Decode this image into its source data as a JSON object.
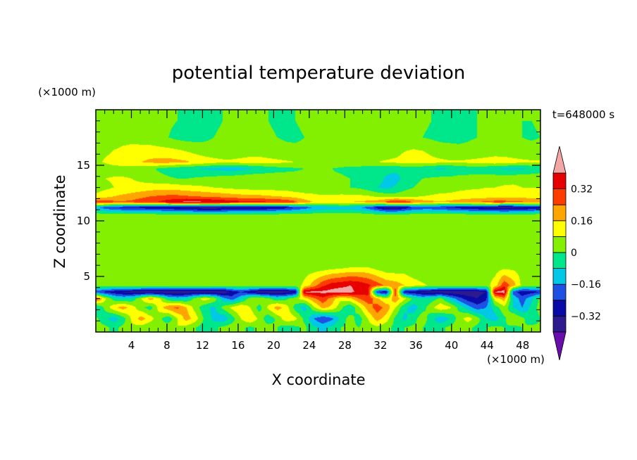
{
  "chart_data": {
    "type": "heatmap",
    "title": "potential temperature deviation",
    "time_label": "t=648000 s",
    "xlabel": "X coordinate",
    "ylabel": "Z coordinate",
    "x_unit": "(×1000 m)",
    "z_unit": "(×1000 m)",
    "xlim": [
      0,
      50
    ],
    "zlim": [
      0,
      20
    ],
    "x_ticks": [
      4,
      8,
      12,
      16,
      20,
      24,
      28,
      32,
      36,
      40,
      44,
      48
    ],
    "z_ticks": [
      5,
      10,
      15
    ],
    "colorbar": {
      "tick_labels": [
        "0.32",
        "0.16",
        "0",
        "−0.16",
        "−0.32"
      ],
      "tick_values": [
        0.32,
        0.16,
        0,
        -0.16,
        -0.32
      ],
      "levels": [
        -0.4,
        -0.32,
        -0.24,
        -0.16,
        -0.08,
        0,
        0.08,
        0.16,
        0.24,
        0.32,
        0.4
      ],
      "colors": [
        "#6a0dad",
        "#2e1a8f",
        "#0a0aa8",
        "#1e50e6",
        "#00c8e6",
        "#00e68a",
        "#82f000",
        "#ffff00",
        "#ffa500",
        "#ff3c00",
        "#e60000",
        "#f4a6a6"
      ],
      "extend": "both"
    },
    "field": {
      "rows": [
        {
          "z": 19.0,
          "v": [
            0.04,
            0.04,
            0.04,
            0.05,
            0.05,
            0.04,
            0.03,
            0.02,
            0.01,
            0.0,
            -0.01,
            -0.01,
            -0.01,
            -0.01,
            0.0,
            0.01,
            0.02,
            0.02,
            0.01,
            0.0,
            -0.01,
            -0.01,
            0.0,
            0.01,
            0.02,
            0.03,
            0.03,
            0.03,
            0.02,
            0.01,
            0.01,
            0.02,
            0.03,
            0.03,
            0.03,
            0.02,
            0.01,
            0.0,
            -0.01,
            -0.02,
            -0.02,
            -0.01,
            0.0,
            0.01,
            0.02,
            0.02,
            0.01,
            0.0,
            0.0,
            0.01
          ]
        },
        {
          "z": 17.5,
          "v": [
            0.03,
            0.04,
            0.05,
            0.06,
            0.06,
            0.05,
            0.04,
            0.02,
            0.0,
            -0.02,
            -0.03,
            -0.03,
            -0.02,
            0.0,
            0.01,
            0.02,
            0.03,
            0.03,
            0.02,
            0.01,
            0.0,
            -0.01,
            -0.01,
            0.0,
            0.01,
            0.02,
            0.03,
            0.03,
            0.02,
            0.01,
            0.0,
            0.0,
            0.01,
            0.02,
            0.02,
            0.01,
            0.0,
            -0.01,
            -0.02,
            -0.02,
            -0.02,
            -0.01,
            0.0,
            0.01,
            0.02,
            0.02,
            0.01,
            0.0,
            -0.01,
            0.0
          ]
        },
        {
          "z": 16.0,
          "v": [
            0.05,
            0.07,
            0.09,
            0.1,
            0.11,
            0.12,
            0.13,
            0.13,
            0.13,
            0.12,
            0.1,
            0.08,
            0.06,
            0.05,
            0.04,
            0.04,
            0.05,
            0.06,
            0.06,
            0.05,
            0.04,
            0.03,
            0.02,
            0.02,
            0.03,
            0.04,
            0.05,
            0.06,
            0.06,
            0.05,
            0.04,
            0.04,
            0.05,
            0.06,
            0.09,
            0.11,
            0.1,
            0.07,
            0.05,
            0.04,
            0.03,
            0.03,
            0.04,
            0.05,
            0.06,
            0.06,
            0.05,
            0.04,
            0.04,
            0.05
          ]
        },
        {
          "z": 15.3,
          "v": [
            0.06,
            0.09,
            0.12,
            0.14,
            0.15,
            0.16,
            0.18,
            0.19,
            0.19,
            0.18,
            0.17,
            0.15,
            0.13,
            0.11,
            0.1,
            0.1,
            0.11,
            0.12,
            0.12,
            0.11,
            0.1,
            0.09,
            0.08,
            0.07,
            0.06,
            0.05,
            0.04,
            0.04,
            0.05,
            0.06,
            0.07,
            0.08,
            0.09,
            0.1,
            0.11,
            0.12,
            0.12,
            0.11,
            0.1,
            0.09,
            0.09,
            0.1,
            0.11,
            0.12,
            0.13,
            0.12,
            0.11,
            0.1,
            0.09,
            0.09
          ]
        },
        {
          "z": 14.7,
          "v": [
            0.02,
            0.03,
            0.04,
            0.04,
            0.03,
            0.02,
            0.01,
            -0.01,
            -0.03,
            -0.05,
            -0.07,
            -0.08,
            -0.09,
            -0.1,
            -0.11,
            -0.12,
            -0.11,
            -0.09,
            -0.07,
            -0.05,
            -0.03,
            -0.02,
            -0.01,
            0.0,
            0.01,
            0.01,
            0.0,
            -0.01,
            -0.02,
            -0.03,
            -0.04,
            -0.05,
            -0.06,
            -0.06,
            -0.05,
            -0.05,
            -0.06,
            -0.08,
            -0.09,
            -0.08,
            -0.06,
            -0.05,
            -0.05,
            -0.06,
            -0.08,
            -0.09,
            -0.1,
            -0.09,
            -0.07,
            -0.05
          ]
        },
        {
          "z": 13.8,
          "v": [
            0.07,
            0.08,
            0.09,
            0.09,
            0.08,
            0.06,
            0.04,
            0.02,
            0.01,
            0.0,
            0.0,
            0.01,
            0.02,
            0.03,
            0.04,
            0.05,
            0.06,
            0.07,
            0.07,
            0.06,
            0.05,
            0.04,
            0.03,
            0.03,
            0.02,
            0.02,
            0.01,
            0.01,
            0.0,
            -0.01,
            -0.02,
            -0.05,
            -0.09,
            -0.11,
            -0.06,
            -0.02,
            0.0,
            0.01,
            0.02,
            0.02,
            0.03,
            0.03,
            0.04,
            0.04,
            0.05,
            0.05,
            0.06,
            0.06,
            0.06,
            0.06
          ]
        },
        {
          "z": 13.0,
          "v": [
            0.04,
            0.06,
            0.08,
            0.09,
            0.1,
            0.11,
            0.12,
            0.13,
            0.13,
            0.12,
            0.11,
            0.1,
            0.09,
            0.08,
            0.07,
            0.06,
            0.05,
            0.05,
            0.05,
            0.05,
            0.04,
            0.04,
            0.03,
            0.03,
            0.03,
            0.02,
            0.02,
            0.01,
            0.0,
            -0.01,
            -0.04,
            -0.08,
            -0.1,
            -0.07,
            -0.03,
            0.0,
            0.02,
            0.03,
            0.04,
            0.05,
            0.06,
            0.07,
            0.07,
            0.08,
            0.08,
            0.09,
            0.09,
            0.08,
            0.08,
            0.08
          ]
        },
        {
          "z": 12.2,
          "v": [
            0.1,
            0.13,
            0.16,
            0.18,
            0.2,
            0.22,
            0.24,
            0.25,
            0.26,
            0.26,
            0.25,
            0.24,
            0.23,
            0.22,
            0.21,
            0.2,
            0.19,
            0.18,
            0.18,
            0.17,
            0.16,
            0.15,
            0.13,
            0.11,
            0.1,
            0.09,
            0.09,
            0.1,
            0.1,
            0.1,
            0.09,
            0.07,
            0.05,
            0.04,
            0.05,
            0.07,
            0.08,
            0.09,
            0.1,
            0.1,
            0.11,
            0.11,
            0.12,
            0.12,
            0.13,
            0.13,
            0.14,
            0.13,
            0.12,
            0.11
          ]
        },
        {
          "z": 11.7,
          "v": [
            0.3,
            0.28,
            0.26,
            0.25,
            0.26,
            0.28,
            0.3,
            0.33,
            0.36,
            0.4,
            0.42,
            0.42,
            0.41,
            0.4,
            0.38,
            0.36,
            0.35,
            0.34,
            0.34,
            0.33,
            0.32,
            0.3,
            0.26,
            0.2,
            0.16,
            0.14,
            0.14,
            0.15,
            0.16,
            0.17,
            0.18,
            0.2,
            0.26,
            0.34,
            0.3,
            0.24,
            0.2,
            0.18,
            0.17,
            0.18,
            0.2,
            0.22,
            0.24,
            0.26,
            0.27,
            0.27,
            0.26,
            0.25,
            0.24,
            0.22
          ]
        },
        {
          "z": 11.2,
          "v": [
            -0.14,
            -0.2,
            -0.24,
            -0.26,
            -0.27,
            -0.28,
            -0.29,
            -0.3,
            -0.31,
            -0.33,
            -0.35,
            -0.37,
            -0.38,
            -0.38,
            -0.37,
            -0.36,
            -0.36,
            -0.35,
            -0.34,
            -0.32,
            -0.3,
            -0.28,
            -0.24,
            -0.2,
            -0.16,
            -0.14,
            -0.12,
            -0.12,
            -0.13,
            -0.15,
            -0.2,
            -0.28,
            -0.35,
            -0.36,
            -0.3,
            -0.24,
            -0.22,
            -0.22,
            -0.24,
            -0.26,
            -0.28,
            -0.3,
            -0.32,
            -0.34,
            -0.36,
            -0.37,
            -0.36,
            -0.34,
            -0.31,
            -0.28
          ]
        },
        {
          "z": 10.5,
          "v": [
            0.05,
            0.05,
            0.05,
            0.05,
            0.05,
            0.05,
            0.05,
            0.05,
            0.05,
            0.05,
            0.05,
            0.05,
            0.05,
            0.05,
            0.05,
            0.05,
            0.05,
            0.05,
            0.05,
            0.05,
            0.05,
            0.05,
            0.05,
            0.05,
            0.05,
            0.05,
            0.05,
            0.05,
            0.05,
            0.05,
            0.05,
            0.04,
            0.03,
            0.03,
            0.04,
            0.05,
            0.05,
            0.05,
            0.05,
            0.05,
            0.05,
            0.05,
            0.05,
            0.05,
            0.05,
            0.05,
            0.05,
            0.05,
            0.05,
            0.05
          ]
        },
        {
          "z": 8.0,
          "v": [
            0.05,
            0.05,
            0.05,
            0.05,
            0.05,
            0.05,
            0.05,
            0.05,
            0.05,
            0.05,
            0.05,
            0.04,
            0.02,
            0.01,
            0.01,
            0.02,
            0.03,
            0.04,
            0.04,
            0.03,
            0.02,
            0.02,
            0.03,
            0.04,
            0.03,
            0.01,
            0.0,
            0.0,
            0.01,
            0.04,
            0.05,
            0.03,
            0.01,
            0.0,
            0.0,
            0.0,
            0.01,
            0.02,
            0.03,
            0.04,
            0.05,
            0.05,
            0.05,
            0.05,
            0.04,
            0.02,
            0.01,
            0.02,
            0.04,
            0.05
          ]
        },
        {
          "z": 6.0,
          "v": [
            0.05,
            0.05,
            0.05,
            0.05,
            0.04,
            0.03,
            0.03,
            0.04,
            0.05,
            0.05,
            0.04,
            0.02,
            0.01,
            0.02,
            0.04,
            0.02,
            0.01,
            0.03,
            0.04,
            0.02,
            0.01,
            0.02,
            0.04,
            0.03,
            0.01,
            0.0,
            0.01,
            0.02,
            0.04,
            0.05,
            0.05,
            0.02,
            0.0,
            0.0,
            0.02,
            0.0,
            0.01,
            0.03,
            0.05,
            0.05,
            0.05,
            0.05,
            0.05,
            0.04,
            0.03,
            0.03,
            0.04,
            0.05,
            0.05,
            0.05
          ]
        },
        {
          "z": 4.2,
          "v": [
            0.04,
            0.05,
            0.05,
            0.05,
            0.05,
            0.05,
            0.04,
            0.04,
            0.05,
            0.05,
            0.05,
            0.05,
            0.05,
            0.04,
            0.04,
            0.05,
            0.05,
            0.05,
            0.05,
            0.05,
            0.05,
            0.05,
            0.04,
            0.1,
            0.2,
            0.3,
            0.36,
            0.38,
            0.4,
            0.38,
            0.34,
            0.28,
            0.22,
            0.2,
            0.16,
            0.12,
            0.09,
            0.07,
            0.05,
            0.05,
            0.05,
            0.05,
            0.05,
            0.05,
            0.12,
            0.3,
            0.2,
            0.05,
            0.04,
            0.04
          ]
        },
        {
          "z": 3.6,
          "v": [
            -0.2,
            -0.26,
            -0.3,
            -0.33,
            -0.35,
            -0.36,
            -0.37,
            -0.38,
            -0.38,
            -0.38,
            -0.37,
            -0.36,
            -0.36,
            -0.37,
            -0.38,
            -0.3,
            -0.24,
            -0.3,
            -0.36,
            -0.38,
            -0.38,
            -0.36,
            -0.32,
            0.41,
            0.42,
            0.42,
            0.43,
            0.44,
            0.42,
            0.38,
            0.34,
            -0.24,
            -0.3,
            0.3,
            -0.28,
            -0.3,
            -0.34,
            -0.36,
            -0.37,
            -0.38,
            -0.38,
            -0.38,
            -0.36,
            -0.32,
            0.41,
            0.44,
            -0.2,
            -0.3,
            -0.28,
            -0.24
          ]
        },
        {
          "z": 3.0,
          "v": [
            0.3,
            0.1,
            -0.04,
            -0.08,
            -0.06,
            0.08,
            0.2,
            0.1,
            -0.06,
            -0.1,
            -0.08,
            0.04,
            0.12,
            0.06,
            -0.12,
            -0.2,
            -0.1,
            0.04,
            0.08,
            0.02,
            -0.06,
            -0.02,
            0.06,
            0.12,
            0.22,
            0.3,
            0.2,
            0.1,
            0.14,
            0.24,
            0.3,
            0.18,
            0.08,
            0.22,
            0.1,
            -0.02,
            -0.08,
            -0.04,
            0.02,
            -0.1,
            -0.2,
            -0.28,
            -0.32,
            -0.26,
            0.12,
            0.2,
            -0.1,
            -0.2,
            -0.1,
            0.02
          ]
        },
        {
          "z": 2.2,
          "v": [
            -0.1,
            0.02,
            0.14,
            0.2,
            0.12,
            0.02,
            -0.04,
            0.12,
            0.22,
            0.26,
            0.16,
            0.04,
            -0.06,
            -0.1,
            0.02,
            0.1,
            0.16,
            0.08,
            -0.04,
            0.1,
            0.2,
            0.12,
            -0.04,
            -0.12,
            0.06,
            0.18,
            0.14,
            0.02,
            -0.08,
            0.06,
            0.2,
            0.28,
            0.22,
            0.08,
            -0.06,
            -0.12,
            -0.04,
            0.06,
            0.14,
            0.1,
            -0.02,
            -0.12,
            -0.2,
            -0.16,
            -0.04,
            0.06,
            -0.08,
            -0.16,
            -0.06,
            0.04
          ]
        },
        {
          "z": 1.2,
          "v": [
            0.02,
            -0.06,
            -0.12,
            -0.04,
            0.1,
            0.2,
            0.12,
            0.02,
            -0.06,
            0.08,
            0.2,
            0.12,
            -0.02,
            -0.1,
            -0.14,
            -0.04,
            0.08,
            0.16,
            0.06,
            -0.06,
            0.02,
            0.14,
            0.1,
            -0.02,
            -0.16,
            -0.24,
            -0.18,
            -0.06,
            0.04,
            -0.04,
            0.08,
            0.2,
            0.12,
            -0.02,
            -0.1,
            -0.04,
            0.06,
            -0.06,
            -0.14,
            -0.08,
            0.04,
            0.12,
            0.04,
            -0.08,
            -0.12,
            -0.02,
            0.08,
            0.02,
            -0.06,
            0.0
          ]
        },
        {
          "z": 0.4,
          "v": [
            0.04,
            0.02,
            -0.02,
            0.02,
            0.06,
            0.04,
            0.0,
            0.02,
            0.06,
            0.08,
            0.04,
            0.0,
            -0.04,
            -0.02,
            0.02,
            0.04,
            0.02,
            -0.02,
            0.02,
            0.04,
            0.0,
            -0.04,
            -0.02,
            0.02,
            -0.06,
            -0.1,
            -0.06,
            0.0,
            0.02,
            0.0,
            0.04,
            0.06,
            0.02,
            -0.02,
            0.0,
            0.02,
            0.0,
            -0.04,
            -0.02,
            0.02,
            0.04,
            0.02,
            -0.02,
            0.0,
            0.02,
            0.0,
            -0.02,
            0.0,
            0.02,
            0.02
          ]
        }
      ]
    }
  }
}
